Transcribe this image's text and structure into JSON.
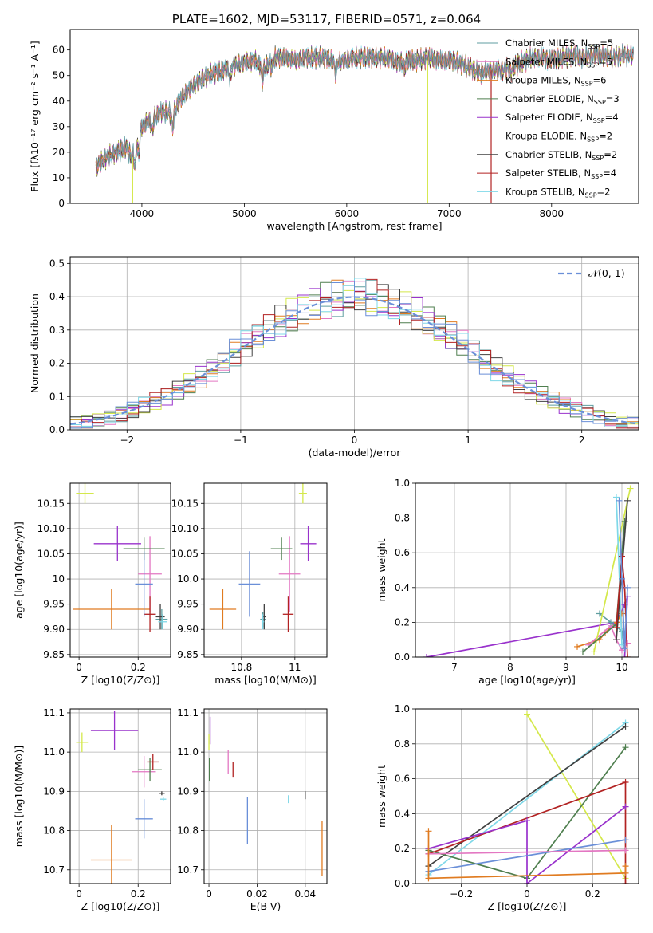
{
  "title": "PLATE=1602, MJD=53117, FIBERID=0571, z=0.064",
  "colors": {
    "chabrier_miles": "#5f9ea0",
    "salpeter_miles": "#e377c2",
    "kroupa_miles": "#e07b20",
    "chabrier_elodie": "#4f7f4f",
    "salpeter_elodie": "#9932cc",
    "kroupa_elodie": "#d4e84a",
    "chabrier_stelib": "#404040",
    "salpeter_stelib": "#b22222",
    "kroupa_stelib": "#7fd8e8",
    "gauss": "#6a8fd8"
  },
  "chart_data": [
    {
      "id": "spectrum",
      "type": "line",
      "title": "PLATE=1602, MJD=53117, FIBERID=0571, z=0.064",
      "xlabel": "wavelength [Angstrom, rest frame]",
      "ylabel": "Flux [fλ10⁻¹⁷ erg cm⁻² s⁻¹ A⁻¹]",
      "xlim": [
        3300,
        8850
      ],
      "ylim": [
        0,
        68
      ],
      "xticks": [
        4000,
        5000,
        6000,
        7000,
        8000
      ],
      "yticks": [
        0,
        10,
        20,
        30,
        40,
        50,
        60
      ],
      "legend": "top-right",
      "series": [
        {
          "name": "Chabrier MILES, N_SSP=5",
          "label": "Chabrier MILES, N",
          "sub": "SSP",
          "tail": "=5",
          "color": "#5f9ea0"
        },
        {
          "name": "Salpeter MILES, N_SSP=5",
          "label": "Salpeter MILES, N",
          "sub": "SSP",
          "tail": "=5",
          "color": "#e377c2"
        },
        {
          "name": "Kroupa MILES, N_SSP=6",
          "label": "Kroupa MILES, N",
          "sub": "SSP",
          "tail": "=6",
          "color": "#e07b20"
        },
        {
          "name": "Chabrier ELODIE, N_SSP=3",
          "label": "Chabrier ELODIE, N",
          "sub": "SSP",
          "tail": "=3",
          "color": "#4f7f4f"
        },
        {
          "name": "Salpeter ELODIE, N_SSP=4",
          "label": "Salpeter ELODIE, N",
          "sub": "SSP",
          "tail": "=4",
          "color": "#9932cc"
        },
        {
          "name": "Kroupa ELODIE, N_SSP=2",
          "label": "Kroupa ELODIE, N",
          "sub": "SSP",
          "tail": "=2",
          "color": "#d4e84a"
        },
        {
          "name": "Chabrier STELIB, N_SSP=2",
          "label": "Chabrier STELIB, N",
          "sub": "SSP",
          "tail": "=2",
          "color": "#404040"
        },
        {
          "name": "Salpeter STELIB, N_SSP=4",
          "label": "Salpeter STELIB, N",
          "sub": "SSP",
          "tail": "=4",
          "color": "#b22222"
        },
        {
          "name": "Kroupa STELIB, N_SSP=2",
          "label": "Kroupa STELIB, N",
          "sub": "SSP",
          "tail": "=2",
          "color": "#7fd8e8"
        }
      ],
      "continuum": [
        [
          3550,
          14
        ],
        [
          3650,
          18
        ],
        [
          3750,
          20
        ],
        [
          3850,
          22
        ],
        [
          3900,
          18
        ],
        [
          3950,
          25
        ],
        [
          4000,
          30
        ],
        [
          4100,
          33
        ],
        [
          4200,
          36
        ],
        [
          4300,
          35
        ],
        [
          4400,
          42
        ],
        [
          4500,
          46
        ],
        [
          4600,
          49
        ],
        [
          4700,
          51
        ],
        [
          4800,
          52
        ],
        [
          4900,
          54
        ],
        [
          5000,
          55
        ],
        [
          5100,
          56
        ],
        [
          5200,
          53
        ],
        [
          5300,
          57
        ],
        [
          5400,
          57
        ],
        [
          5500,
          56
        ],
        [
          5600,
          57
        ],
        [
          5700,
          57
        ],
        [
          5800,
          57
        ],
        [
          5900,
          55
        ],
        [
          6000,
          56
        ],
        [
          6100,
          57
        ],
        [
          6200,
          57
        ],
        [
          6300,
          57
        ],
        [
          6400,
          57
        ],
        [
          6500,
          55
        ],
        [
          6600,
          56
        ],
        [
          6700,
          56
        ],
        [
          6800,
          57
        ],
        [
          6900,
          56
        ],
        [
          7000,
          56
        ],
        [
          7100,
          55
        ],
        [
          7200,
          53
        ],
        [
          7300,
          51
        ],
        [
          7400,
          52
        ],
        [
          7500,
          52
        ],
        [
          7600,
          53
        ],
        [
          7700,
          55
        ],
        [
          7800,
          57
        ],
        [
          7900,
          57
        ],
        [
          8000,
          56
        ],
        [
          8100,
          57
        ],
        [
          8200,
          58
        ],
        [
          8300,
          57
        ],
        [
          8400,
          58
        ],
        [
          8500,
          58
        ],
        [
          8600,
          57
        ],
        [
          8700,
          58
        ],
        [
          8800,
          58
        ]
      ],
      "model_cuts": [
        {
          "series": 5,
          "x": 3910,
          "ystart": 18
        },
        {
          "series": 5,
          "x": 6790,
          "ystart": 56
        },
        {
          "series": 7,
          "x": 7410,
          "ystart": 52
        }
      ]
    },
    {
      "id": "residuals",
      "type": "line",
      "xlabel": "(data-model)/error",
      "ylabel": "Normed distribution",
      "xlim": [
        -2.5,
        2.5
      ],
      "ylim": [
        0,
        0.52
      ],
      "xticks": [
        -2,
        -1,
        0,
        1,
        2
      ],
      "yticks": [
        0.0,
        0.1,
        0.2,
        0.3,
        0.4,
        0.5
      ],
      "grid": true,
      "legend": "top-right",
      "gauss_label": "𝒩(0, 1)",
      "bin_width": 0.1
    },
    {
      "id": "age_vs_Z",
      "type": "scatter",
      "xlabel": "Z [log10(Z/Z⊙)]",
      "ylabel": "age  [log10(age/yr)]",
      "xlim": [
        -0.03,
        0.31
      ],
      "ylim": [
        9.845,
        10.19
      ],
      "xticks": [
        0.0,
        0.2
      ],
      "yticks": [
        9.85,
        9.9,
        9.95,
        10.0,
        10.05,
        10.1,
        10.15
      ],
      "grid": true,
      "points": [
        {
          "series": 0,
          "x": 0.28,
          "y": 9.92,
          "xerr": 0.02,
          "yerr": 0.02
        },
        {
          "series": 1,
          "x": 0.24,
          "y": 10.01,
          "xerr": 0.04,
          "yerr": 0.075
        },
        {
          "series": 2,
          "x": 0.11,
          "y": 9.94,
          "xerr": 0.13,
          "yerr": 0.04
        },
        {
          "series": 3,
          "x": 0.22,
          "y": 10.06,
          "xerr": 0.07,
          "yerr": 0.022
        },
        {
          "series": 4,
          "x": 0.13,
          "y": 10.07,
          "xerr": 0.08,
          "yerr": 0.035
        },
        {
          "series": 5,
          "x": 0.02,
          "y": 10.17,
          "xerr": 0.03,
          "yerr": 0.02
        },
        {
          "series": 6,
          "x": 0.275,
          "y": 9.925,
          "xerr": 0.015,
          "yerr": 0.025
        },
        {
          "series": 7,
          "x": 0.24,
          "y": 9.93,
          "xerr": 0.02,
          "yerr": 0.035
        },
        {
          "series": 8,
          "x": 0.283,
          "y": 9.915,
          "xerr": 0.015,
          "yerr": 0.015
        },
        {
          "series": 9,
          "x": 0.22,
          "y": 9.99,
          "xerr": 0.03,
          "yerr": 0.065
        }
      ]
    },
    {
      "id": "age_vs_mass",
      "type": "scatter",
      "xlabel": "mass [log10(M/M⊙)]",
      "xlim": [
        10.66,
        11.12
      ],
      "ylim": [
        9.845,
        10.19
      ],
      "xticks": [
        10.8,
        11.0
      ],
      "yticks": [
        9.85,
        9.9,
        9.95,
        10.0,
        10.05,
        10.1,
        10.15
      ],
      "grid": true,
      "points": [
        {
          "series": 0,
          "x": 10.88,
          "y": 9.92,
          "xerr": 0.01,
          "yerr": 0.015
        },
        {
          "series": 1,
          "x": 10.98,
          "y": 10.01,
          "xerr": 0.04,
          "yerr": 0.075
        },
        {
          "series": 2,
          "x": 10.73,
          "y": 9.94,
          "xerr": 0.05,
          "yerr": 0.04
        },
        {
          "series": 3,
          "x": 10.95,
          "y": 10.06,
          "xerr": 0.04,
          "yerr": 0.022
        },
        {
          "series": 4,
          "x": 11.05,
          "y": 10.07,
          "xerr": 0.03,
          "yerr": 0.035
        },
        {
          "series": 5,
          "x": 11.03,
          "y": 10.17,
          "xerr": 0.015,
          "yerr": 0.02
        },
        {
          "series": 6,
          "x": 10.885,
          "y": 9.925,
          "xerr": 0.005,
          "yerr": 0.025
        },
        {
          "series": 7,
          "x": 10.975,
          "y": 9.93,
          "xerr": 0.02,
          "yerr": 0.035
        },
        {
          "series": 8,
          "x": 10.88,
          "y": 9.915,
          "xerr": 0.005,
          "yerr": 0.015
        },
        {
          "series": 9,
          "x": 10.83,
          "y": 9.99,
          "xerr": 0.04,
          "yerr": 0.065
        }
      ]
    },
    {
      "id": "weight_vs_age",
      "type": "line",
      "xlabel": "age  [log10(age/yr)]",
      "ylabel": "mass weight",
      "xlim": [
        6.3,
        10.3
      ],
      "ylim": [
        0,
        1.0
      ],
      "xticks": [
        7,
        8,
        9,
        10
      ],
      "yticks": [
        0.0,
        0.2,
        0.4,
        0.6,
        0.8,
        1.0
      ],
      "grid": true,
      "paths": [
        {
          "series": 4,
          "pts": [
            [
              6.5,
              0.0
            ],
            [
              9.9,
              0.2
            ],
            [
              10.05,
              0.3
            ],
            [
              10.1,
              0.35
            ],
            [
              10.05,
              0.0
            ]
          ]
        },
        {
          "series": 2,
          "pts": [
            [
              9.2,
              0.06
            ],
            [
              9.6,
              0.1
            ],
            [
              9.7,
              0.14
            ],
            [
              9.9,
              0.2
            ],
            [
              10.0,
              0.25
            ]
          ]
        },
        {
          "series": 1,
          "pts": [
            [
              9.4,
              0.07
            ],
            [
              9.8,
              0.18
            ],
            [
              9.9,
              0.1
            ],
            [
              10.0,
              0.04
            ],
            [
              10.1,
              0.08
            ]
          ]
        },
        {
          "series": 0,
          "pts": [
            [
              9.6,
              0.25
            ],
            [
              9.8,
              0.2
            ],
            [
              10.0,
              0.15
            ],
            [
              10.05,
              0.05
            ]
          ]
        },
        {
          "series": 5,
          "pts": [
            [
              9.5,
              0.03
            ],
            [
              10.15,
              0.97
            ]
          ]
        },
        {
          "series": 3,
          "pts": [
            [
              9.3,
              0.03
            ],
            [
              9.9,
              0.19
            ],
            [
              10.05,
              0.78
            ]
          ]
        },
        {
          "series": 6,
          "pts": [
            [
              9.9,
              0.1
            ],
            [
              10.1,
              0.9
            ]
          ]
        },
        {
          "series": 8,
          "pts": [
            [
              9.9,
              0.92
            ],
            [
              10.0,
              0.07
            ]
          ]
        },
        {
          "series": 7,
          "pts": [
            [
              9.9,
              0.17
            ],
            [
              10.0,
              0.58
            ],
            [
              10.05,
              0.4
            ],
            [
              10.1,
              0.0
            ]
          ]
        },
        {
          "series": 9,
          "pts": [
            [
              9.95,
              0.9
            ],
            [
              10.0,
              0.45
            ],
            [
              10.05,
              0.05
            ],
            [
              10.1,
              0.4
            ]
          ]
        }
      ]
    },
    {
      "id": "mass_vs_Z",
      "type": "scatter",
      "xlabel": "Z [log10(Z/Z⊙)]",
      "ylabel": "mass [log10(M/M⊙)]",
      "xlim": [
        -0.03,
        0.31
      ],
      "ylim": [
        10.665,
        11.11
      ],
      "xticks": [
        0.0,
        0.2
      ],
      "yticks": [
        10.7,
        10.8,
        10.9,
        11.0,
        11.1
      ],
      "grid": true,
      "points": [
        {
          "series": 1,
          "x": 0.22,
          "y": 10.95,
          "xerr": 0.04,
          "yerr": 0.04
        },
        {
          "series": 2,
          "x": 0.11,
          "y": 10.725,
          "xerr": 0.07,
          "yerr": 0.09
        },
        {
          "series": 3,
          "x": 0.24,
          "y": 10.955,
          "xerr": 0.04,
          "yerr": 0.03
        },
        {
          "series": 4,
          "x": 0.12,
          "y": 11.055,
          "xerr": 0.08,
          "yerr": 0.05
        },
        {
          "series": 5,
          "x": 0.01,
          "y": 11.025,
          "xerr": 0.02,
          "yerr": 0.025
        },
        {
          "series": 6,
          "x": 0.28,
          "y": 10.895,
          "xerr": 0.01,
          "yerr": 0.005
        },
        {
          "series": 7,
          "x": 0.25,
          "y": 10.975,
          "xerr": 0.02,
          "yerr": 0.02
        },
        {
          "series": 8,
          "x": 0.285,
          "y": 10.88,
          "xerr": 0.01,
          "yerr": 0.005
        },
        {
          "series": 9,
          "x": 0.22,
          "y": 10.83,
          "xerr": 0.03,
          "yerr": 0.05
        }
      ]
    },
    {
      "id": "mass_vs_ebv",
      "type": "scatter",
      "xlabel": "E(B-V)",
      "xlim": [
        -0.002,
        0.049
      ],
      "ylim": [
        10.665,
        11.11
      ],
      "xticks": [
        0.0,
        0.02,
        0.04
      ],
      "yticks": [
        10.7,
        10.8,
        10.9,
        11.0,
        11.1
      ],
      "grid": true,
      "points": [
        {
          "series": 4,
          "x": 0.0005,
          "y": 11.055,
          "xerr": 0,
          "yerr": 0.035
        },
        {
          "series": 5,
          "x": 0.0,
          "y": 11.025,
          "xerr": 0,
          "yerr": 0.02
        },
        {
          "series": 3,
          "x": 0.0002,
          "y": 10.955,
          "xerr": 0,
          "yerr": 0.03
        },
        {
          "series": 1,
          "x": 0.008,
          "y": 10.975,
          "xerr": 0,
          "yerr": 0.03
        },
        {
          "series": 7,
          "x": 0.01,
          "y": 10.955,
          "xerr": 0,
          "yerr": 0.02
        },
        {
          "series": 9,
          "x": 0.016,
          "y": 10.825,
          "xerr": 0,
          "yerr": 0.06
        },
        {
          "series": 8,
          "x": 0.033,
          "y": 10.88,
          "xerr": 0,
          "yerr": 0.01
        },
        {
          "series": 6,
          "x": 0.04,
          "y": 10.89,
          "xerr": 0,
          "yerr": 0.01
        },
        {
          "series": 2,
          "x": 0.047,
          "y": 10.755,
          "xerr": 0,
          "yerr": 0.07
        }
      ]
    },
    {
      "id": "weight_vs_Z",
      "type": "line",
      "xlabel": "Z [log10(Z/Z⊙)]",
      "ylabel": "mass weight",
      "xlim": [
        -0.34,
        0.34
      ],
      "ylim": [
        0,
        1.0
      ],
      "xticks": [
        -0.2,
        0.0,
        0.2
      ],
      "yticks": [
        0.0,
        0.2,
        0.4,
        0.6,
        0.8,
        1.0
      ],
      "grid": true,
      "paths": [
        {
          "series": 5,
          "pts": [
            [
              0.0,
              0.97
            ],
            [
              0.3,
              0.03
            ]
          ]
        },
        {
          "series": 8,
          "pts": [
            [
              -0.3,
              0.05
            ],
            [
              0.3,
              0.92
            ]
          ]
        },
        {
          "series": 6,
          "pts": [
            [
              -0.3,
              0.1
            ],
            [
              0.3,
              0.9
            ]
          ]
        },
        {
          "series": 3,
          "pts": [
            [
              -0.3,
              0.19
            ],
            [
              0.0,
              0.03
            ],
            [
              0.3,
              0.78
            ]
          ]
        },
        {
          "series": 7,
          "pts": [
            [
              -0.3,
              0.17
            ],
            [
              0.3,
              0.58
            ],
            [
              0.3,
              0.0
            ]
          ]
        },
        {
          "series": 4,
          "pts": [
            [
              -0.3,
              0.2
            ],
            [
              0.0,
              0.36
            ],
            [
              0.0,
              0.0
            ],
            [
              0.3,
              0.44
            ]
          ]
        },
        {
          "series": 9,
          "pts": [
            [
              -0.3,
              0.07
            ],
            [
              0.3,
              0.25
            ]
          ]
        },
        {
          "series": 1,
          "pts": [
            [
              -0.3,
              0.17
            ],
            [
              0.3,
              0.19
            ]
          ]
        },
        {
          "series": 2,
          "pts": [
            [
              -0.3,
              0.3
            ],
            [
              -0.3,
              0.03
            ],
            [
              0.3,
              0.06
            ],
            [
              0.3,
              0.1
            ]
          ]
        }
      ]
    }
  ]
}
